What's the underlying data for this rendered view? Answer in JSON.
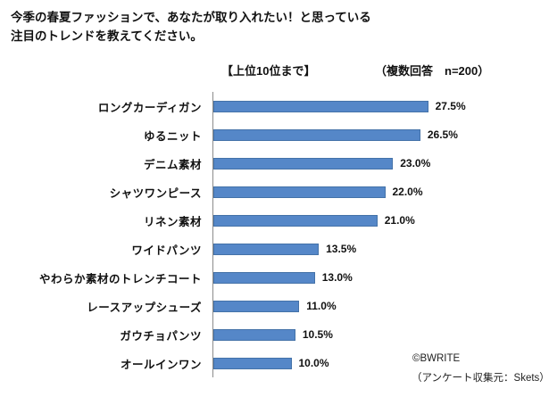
{
  "title": {
    "line1": "今季の春夏ファッションで、あなたが取り入れたい！と思っている",
    "line2": "注目のトレンドを教えてください。"
  },
  "subtitle": {
    "rank_note": "【上位10位まで】",
    "sample_note": "（複数回答　n=200）"
  },
  "chart_data": {
    "type": "bar",
    "orientation": "horizontal",
    "title": "今季の春夏ファッションで、あなたが取り入れたい！と思っている注目のトレンドを教えてください。",
    "subtitle": "【上位10位まで】（複数回答 n=200）",
    "categories": [
      "ロングカーディガン",
      "ゆるニット",
      "デニム素材",
      "シャツワンピース",
      "リネン素材",
      "ワイドパンツ",
      "やわらか素材のトレンチコート",
      "レースアップシューズ",
      "ガウチョパンツ",
      "オールインワン"
    ],
    "values": [
      27.5,
      26.5,
      23.0,
      22.0,
      21.0,
      13.5,
      13.0,
      11.0,
      10.5,
      10.0
    ],
    "value_labels": [
      "27.5%",
      "26.5%",
      "23.0%",
      "22.0%",
      "21.0%",
      "13.5%",
      "13.0%",
      "11.0%",
      "10.5%",
      "10.0%"
    ],
    "unit": "%",
    "xlim": [
      0,
      30
    ],
    "grid": false,
    "legend": false,
    "data_labels_position": "end-of-bar",
    "bar_color": "#5587c8",
    "bar_border_color": "#4472a8",
    "axis_color": "#8c8c8c"
  },
  "footer": {
    "copyright": "©BWRITE",
    "source": "（アンケート収集元：Skets）"
  }
}
